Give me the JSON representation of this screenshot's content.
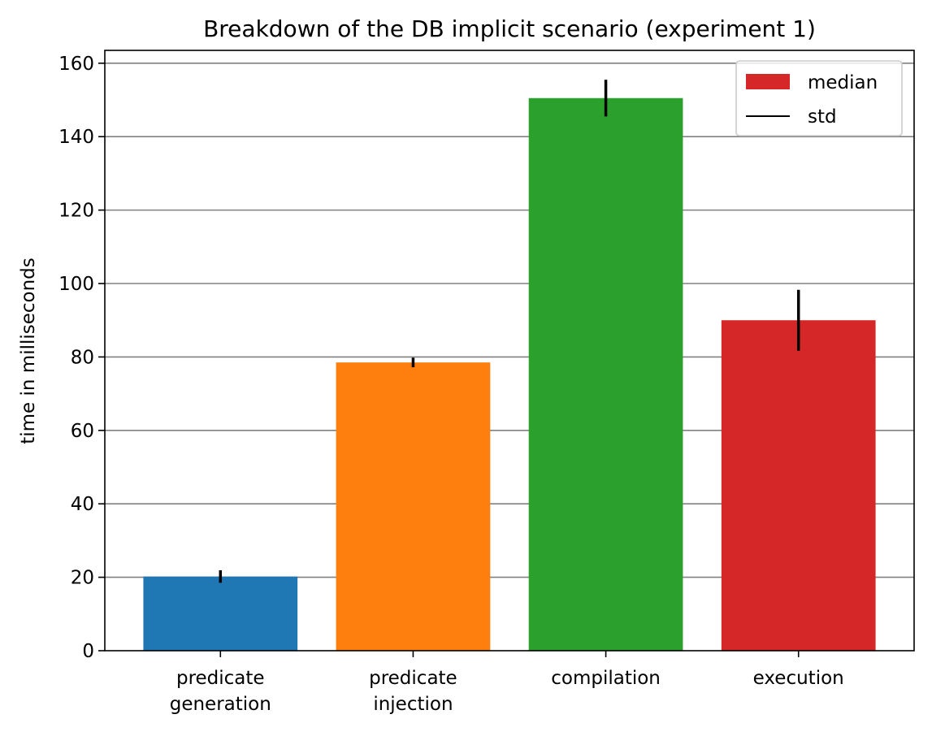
{
  "chart_data": {
    "type": "bar",
    "title": "Breakdown of the DB implicit scenario (experiment 1)",
    "xlabel": "",
    "ylabel": "time in milliseconds",
    "categories": [
      [
        "predicate",
        "generation"
      ],
      [
        "predicate",
        "injection"
      ],
      [
        "compilation"
      ],
      [
        "execution"
      ]
    ],
    "values": [
      20.2,
      78.5,
      150.5,
      90.0
    ],
    "std": [
      1.7,
      1.3,
      5.0,
      8.3
    ],
    "colors": [
      "#1f77b4",
      "#ff7f0e",
      "#2ca02c",
      "#d62728"
    ],
    "ylim": [
      0,
      163.5
    ],
    "yticks": [
      0,
      20,
      40,
      60,
      80,
      100,
      120,
      140,
      160
    ],
    "grid": "y",
    "legend": {
      "position": "top-right",
      "entries": [
        {
          "label": "median",
          "kind": "patch",
          "color": "#d62728"
        },
        {
          "label": "std",
          "kind": "line",
          "color": "#000000"
        }
      ]
    }
  }
}
